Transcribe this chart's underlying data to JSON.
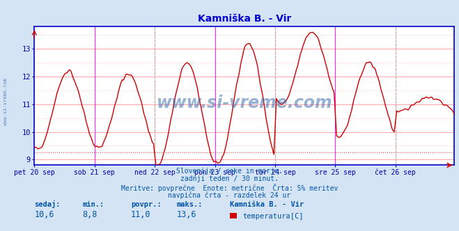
{
  "title": "Kamniška B. - Vir",
  "title_color": "#0000cc",
  "bg_color": "#d4e4f4",
  "plot_bg_color": "#ffffff",
  "line_color": "#cc0000",
  "grid_color_major": "#ffaaaa",
  "grid_color_minor": "#ffe0e0",
  "axis_color": "#0000cc",
  "tick_color": "#0000aa",
  "ylim": [
    8.8,
    13.8
  ],
  "yticks": [
    9,
    10,
    11,
    12,
    13
  ],
  "watermark": "www.si-vreme.com",
  "watermark_color": "#3366aa",
  "subtitle_lines": [
    "Slovenija / reke in morje.",
    "zadnji teden / 30 minut.",
    "Meritve: povprečne  Enote: metrične  Črta: 5% meritev",
    "navpična črta - razdelek 24 ur"
  ],
  "subtitle_color": "#0055aa",
  "stats_labels": [
    "sedaj:",
    "min.:",
    "povpr.:",
    "maks.:"
  ],
  "stats_values": [
    "10,6",
    "8,8",
    "11,0",
    "13,6"
  ],
  "legend_title": "Kamniška B. - Vir",
  "legend_label": "temperatura[C]",
  "legend_color": "#cc0000",
  "vline_color": "#ff00ff",
  "hline_color": "#cc0000",
  "hline_y": 9.25,
  "xlabels": [
    "pet 20 sep",
    "sob 21 sep",
    "ned 22 sep",
    "pon 23 sep",
    "tor 24 sep",
    "sre 25 sep",
    "čet 26 sep"
  ],
  "n_points": 336,
  "day_ticks": [
    0,
    48,
    96,
    144,
    192,
    240,
    288
  ],
  "vline_positions": [
    48,
    144,
    240
  ],
  "dashed_vline_positions": [
    96,
    192,
    288
  ],
  "temp_min": 8.8,
  "temp_max": 13.6,
  "temp_avg": 11.0,
  "temp_last": 10.6
}
